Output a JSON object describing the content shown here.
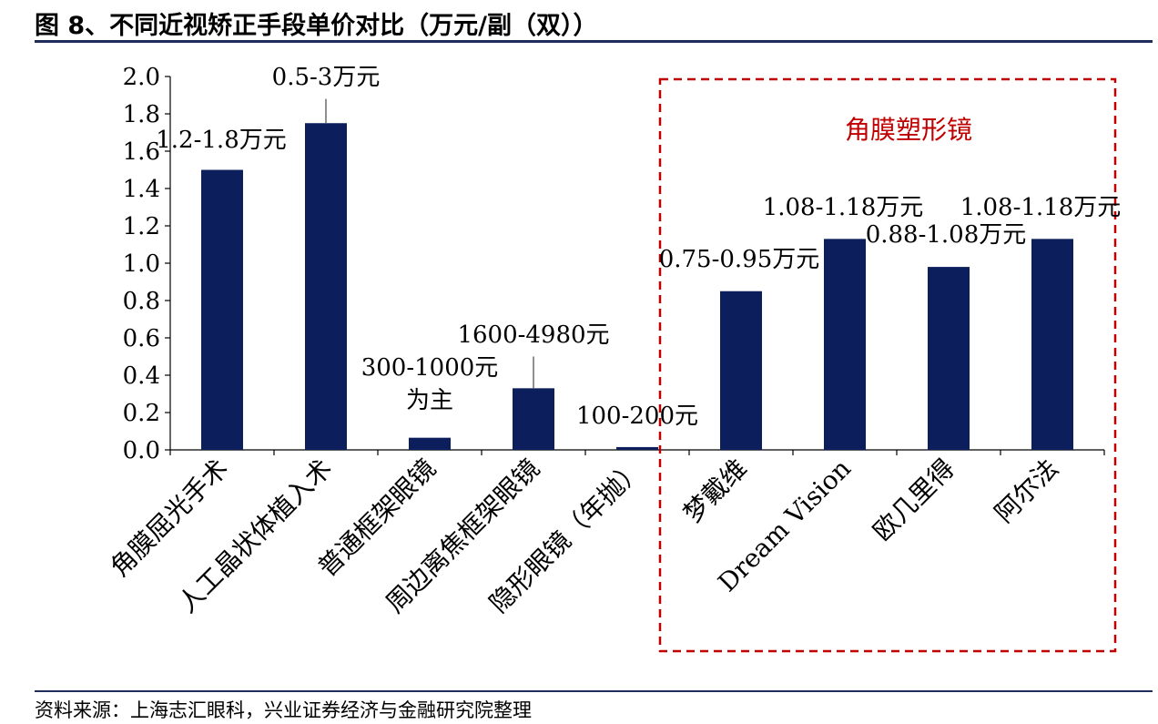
{
  "header": {
    "title": "图 8、不同近视矫正手段单价对比（万元/副（双））"
  },
  "footer": {
    "source": "资料来源：上海志汇眼科，兴业证券经济与金融研究院整理"
  },
  "colors": {
    "bar": "#0c1f5c",
    "highlight_box": "#c00000",
    "error_bar": "#909090",
    "rule": "#1f2d5c"
  },
  "chart_data": {
    "type": "bar",
    "categories": [
      "角膜屈光手术",
      "人工晶状体植入术",
      "普通框架眼镜",
      "周边离焦框架眼镜",
      "隐形眼镜（年抛）",
      "梦戴维",
      "Dream Vision",
      "欧几里得",
      "阿尔法"
    ],
    "values": [
      1.5,
      1.75,
      0.065,
      0.33,
      0.015,
      0.85,
      1.13,
      0.98,
      1.13
    ],
    "error_high": [
      null,
      1.88,
      null,
      0.5,
      null,
      null,
      null,
      null,
      null
    ],
    "data_labels": [
      "1.2-1.8万元",
      "0.5-3万元",
      "300-1000元为主",
      "1600-4980元",
      "100-200元",
      "0.75-0.95万元",
      "1.08-1.18万元",
      "0.88-1.08万元",
      "1.08-1.18万元"
    ],
    "ylim": [
      0,
      2.0
    ],
    "yticks": [
      "0.0",
      "0.2",
      "0.4",
      "0.6",
      "0.8",
      "1.0",
      "1.2",
      "1.4",
      "1.6",
      "1.8",
      "2.0"
    ],
    "annotation": "角膜塑形镜",
    "grid": false,
    "legend": "none"
  }
}
